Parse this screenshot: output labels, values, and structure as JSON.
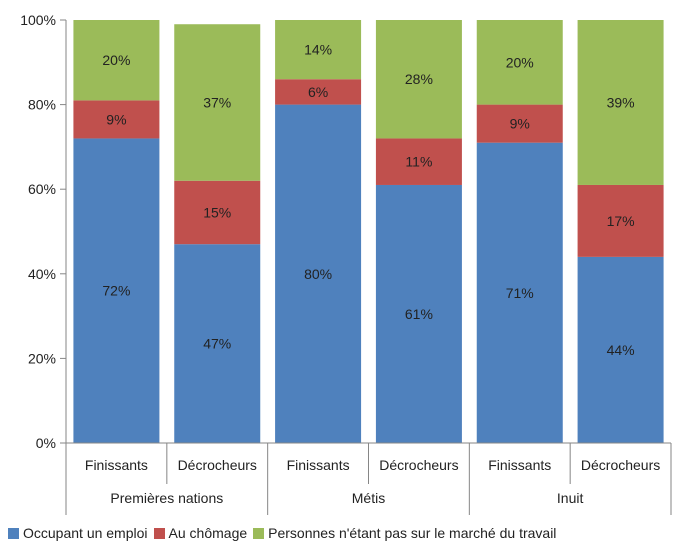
{
  "chart_data": {
    "type": "bar",
    "stacked": true,
    "groups": [
      "Premières nations",
      "Métis",
      "Inuit"
    ],
    "categories": [
      "Finissants",
      "Décrocheurs",
      "Finissants",
      "Décrocheurs",
      "Finissants",
      "Décrocheurs"
    ],
    "series": [
      {
        "name": "Occupant un emploi",
        "color": "#4f81bd",
        "values": [
          72,
          47,
          80,
          61,
          71,
          44
        ]
      },
      {
        "name": "Au chômage",
        "color": "#c0504d",
        "values": [
          9,
          15,
          6,
          11,
          9,
          17
        ]
      },
      {
        "name": "Personnes n'étant pas sur le marché du travail",
        "color": "#9bbb59",
        "values": [
          20,
          37,
          14,
          28,
          20,
          39
        ]
      }
    ],
    "value_labels": [
      [
        "72%",
        "47%",
        "80%",
        "61%",
        "71%",
        "44%"
      ],
      [
        "9%",
        "15%",
        "6%",
        "11%",
        "9%",
        "17%"
      ],
      [
        "20%",
        "37%",
        "14%",
        "28%",
        "20%",
        "39%"
      ]
    ],
    "yticks": [
      "0%",
      "20%",
      "40%",
      "60%",
      "80%",
      "100%"
    ],
    "ylim": [
      0,
      100
    ],
    "grid": false,
    "legend_position": "bottom"
  }
}
